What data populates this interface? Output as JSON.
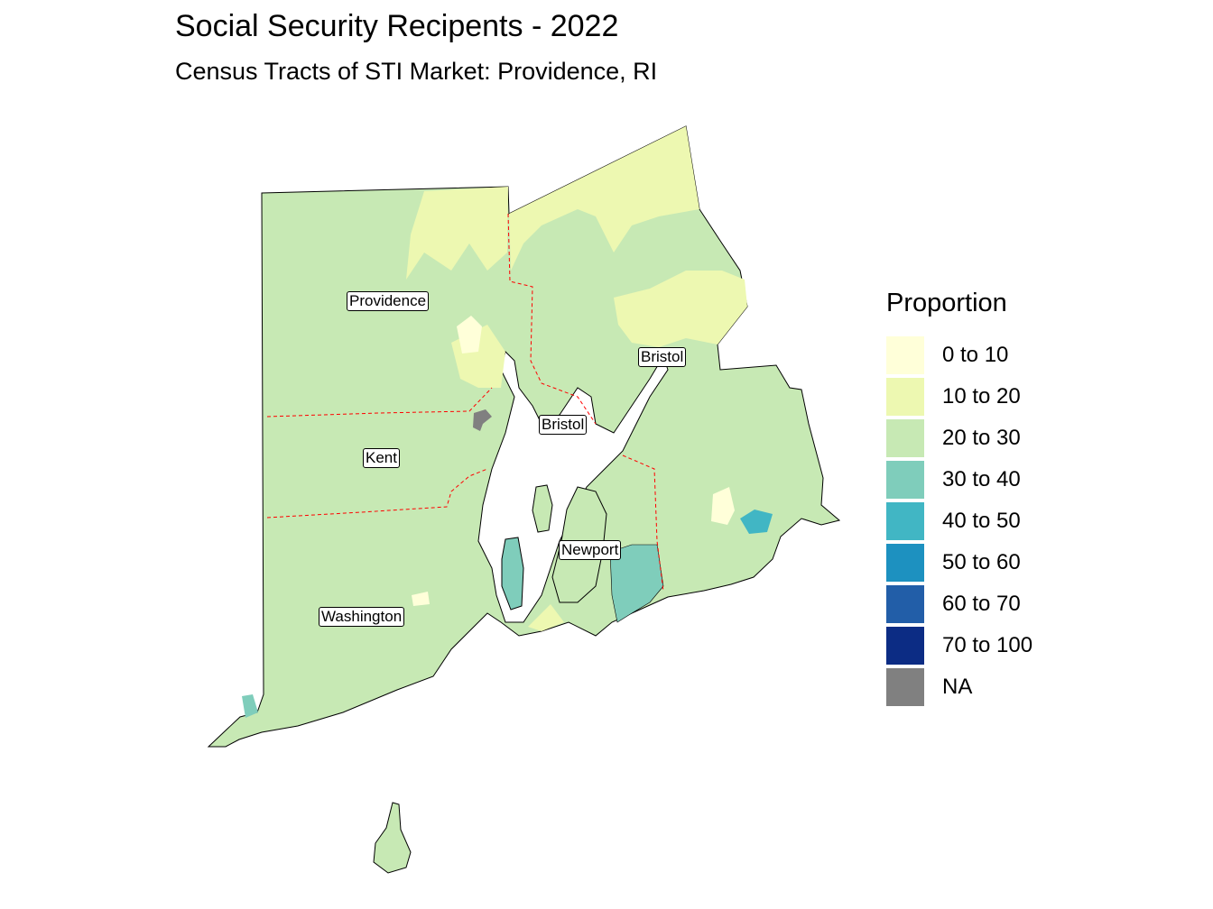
{
  "title": "Social Security Recipents - 2022",
  "subtitle": "Census Tracts of STI Market: Providence, RI",
  "map": {
    "county_labels": [
      "Providence",
      "Bristol",
      "Kent",
      "Bristol",
      "Newport",
      "Washington"
    ],
    "boundary_color": "#ff0000",
    "background": "#ffffff"
  },
  "legend": {
    "title": "Proportion",
    "items": [
      {
        "label": "0 to 10",
        "color": "#ffffd9"
      },
      {
        "label": "10 to 20",
        "color": "#edf8b1"
      },
      {
        "label": "20 to 30",
        "color": "#c7e9b4"
      },
      {
        "label": "30 to 40",
        "color": "#7fcdbb"
      },
      {
        "label": "40 to 50",
        "color": "#41b6c4"
      },
      {
        "label": "50 to 60",
        "color": "#1d91c0"
      },
      {
        "label": "60 to 70",
        "color": "#225ea8"
      },
      {
        "label": "70 to 100",
        "color": "#0c2c84"
      },
      {
        "label": "NA",
        "color": "#808080"
      }
    ]
  }
}
